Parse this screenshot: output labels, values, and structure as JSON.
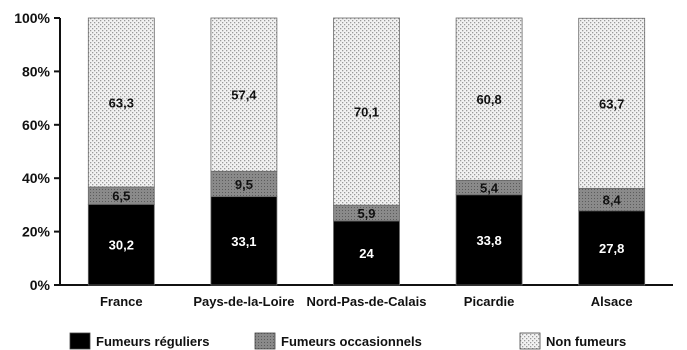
{
  "chart_data": {
    "type": "bar",
    "stacked": true,
    "percent_scale": true,
    "categories": [
      "France",
      "Pays-de-la-Loire",
      "Nord-Pas-de-Calais",
      "Picardie",
      "Alsace"
    ],
    "series": [
      {
        "name": "Fumeurs réguliers",
        "values": [
          30.2,
          33.1,
          24,
          33.8,
          27.8
        ],
        "labels": [
          "30,2",
          "33,1",
          "24",
          "33,8",
          "27,8"
        ],
        "color": "#000000"
      },
      {
        "name": "Fumeurs occasionnels",
        "values": [
          6.5,
          9.5,
          5.9,
          5.4,
          8.4
        ],
        "labels": [
          "6,5",
          "9,5",
          "5,9",
          "5,4",
          "8,4"
        ],
        "color": "#8c8c8c"
      },
      {
        "name": "Non fumeurs",
        "values": [
          63.3,
          57.4,
          70.1,
          60.8,
          63.7
        ],
        "labels": [
          "63,3",
          "57,4",
          "70,1",
          "60,8",
          "63,7"
        ],
        "color": "#e6e6e6"
      }
    ],
    "yticks": [
      "0%",
      "20%",
      "40%",
      "60%",
      "80%",
      "100%"
    ],
    "ylim": [
      0,
      100
    ],
    "grid": false,
    "legend": "bottom"
  }
}
